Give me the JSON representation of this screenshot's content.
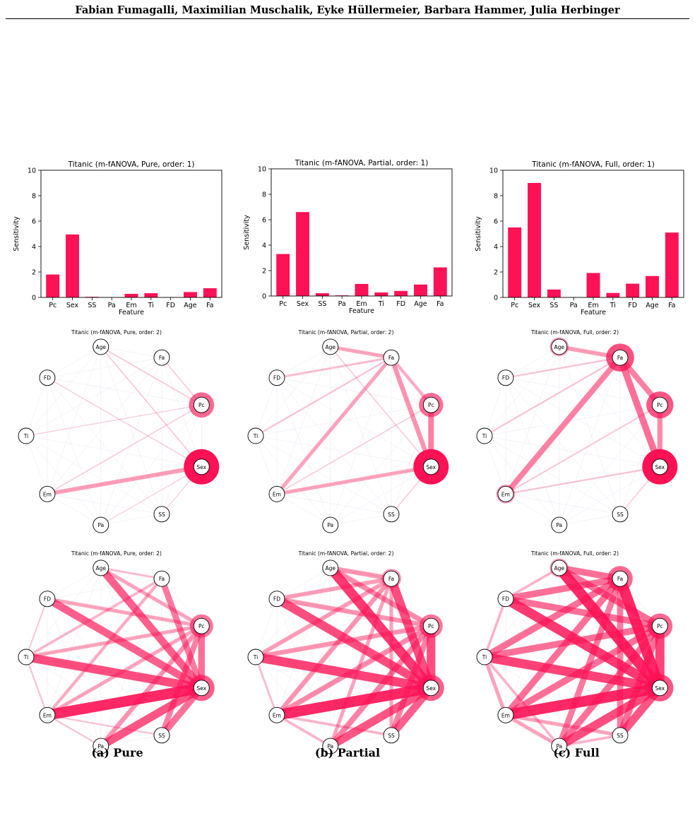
{
  "header": {
    "authors": "Fabian Fumagalli, Maximilian Muschalik, Eyke Hüllermeier, Barbara Hammer, Julia Herbinger"
  },
  "accent_color": "#ff1155",
  "features": [
    "Pc",
    "Sex",
    "SS",
    "Pa",
    "Em",
    "Ti",
    "FD",
    "Age",
    "Fa"
  ],
  "columns": [
    {
      "caption": "(a) Pure",
      "chart_data": {
        "type": "bar",
        "title": "Titanic (m-fANOVA, Pure, order: 1)",
        "xlabel": "Feature",
        "ylabel": "Sensitivity",
        "ylim": [
          0,
          10
        ],
        "yticks": [
          "0",
          "2",
          "4",
          "6",
          "8",
          "10"
        ],
        "categories": [
          "Pc",
          "Sex",
          "SS",
          "Pa",
          "Em",
          "Ti",
          "FD",
          "Age",
          "Fa"
        ],
        "values": [
          1.8,
          4.95,
          0.05,
          0.02,
          0.28,
          0.33,
          0.02,
          0.42,
          0.72
        ]
      },
      "network_mid": {
        "title": "Titanic (m-fANOVA, Pure, order: 2)",
        "node_strength": [
          0.45,
          1.0,
          0.0,
          0.0,
          0.0,
          0.0,
          0.0,
          0.0,
          0.0
        ],
        "edges": [
          [
            1,
            4,
            0.35
          ],
          [
            1,
            7,
            0.06
          ],
          [
            1,
            6,
            0.04
          ],
          [
            0,
            7,
            0.06
          ],
          [
            0,
            8,
            0.05
          ],
          [
            4,
            0,
            0.05
          ],
          [
            1,
            2,
            0.03
          ],
          [
            3,
            1,
            0.03
          ],
          [
            5,
            0,
            0.03
          ]
        ]
      },
      "network_bottom": {
        "title": "Titanic (m-fANOVA, Pure, order: 2)",
        "node_strength": [
          0.35,
          0.5,
          0.0,
          0.0,
          0.0,
          0.0,
          0.0,
          0.0,
          0.0
        ],
        "edges": [
          [
            1,
            4,
            1.0
          ],
          [
            1,
            5,
            0.8
          ],
          [
            1,
            3,
            0.75
          ],
          [
            1,
            6,
            0.7
          ],
          [
            1,
            7,
            0.7
          ],
          [
            1,
            2,
            0.6
          ],
          [
            1,
            0,
            0.6
          ],
          [
            1,
            8,
            0.55
          ],
          [
            0,
            2,
            0.5
          ],
          [
            0,
            3,
            0.4
          ],
          [
            0,
            4,
            0.3
          ],
          [
            0,
            5,
            0.3
          ],
          [
            0,
            6,
            0.3
          ],
          [
            0,
            7,
            0.3
          ],
          [
            8,
            4,
            0.25
          ],
          [
            8,
            5,
            0.2
          ],
          [
            4,
            5,
            0.1
          ],
          [
            5,
            6,
            0.08
          ],
          [
            3,
            4,
            0.1
          ],
          [
            2,
            4,
            0.1
          ],
          [
            7,
            8,
            0.15
          ]
        ]
      }
    },
    {
      "caption": "(b) Partial",
      "chart_data": {
        "type": "bar",
        "title": "Titanic (m-fANOVA, Partial, order: 1)",
        "xlabel": "Feature",
        "ylabel": "Sensitivity",
        "ylim": [
          0,
          10
        ],
        "yticks": [
          "0",
          "2",
          "4",
          "6",
          "8",
          "10"
        ],
        "categories": [
          "Pc",
          "Sex",
          "SS",
          "Pa",
          "Em",
          "Ti",
          "FD",
          "Age",
          "Fa"
        ],
        "values": [
          3.3,
          6.6,
          0.22,
          0.05,
          0.95,
          0.28,
          0.4,
          0.9,
          2.25
        ]
      },
      "network_mid": {
        "title": "Titanic (m-fANOVA, Partial, order: 2)",
        "node_strength": [
          0.4,
          1.0,
          0.0,
          0.0,
          0.0,
          0.0,
          0.0,
          0.0,
          0.0
        ],
        "edges": [
          [
            1,
            0,
            0.5
          ],
          [
            1,
            8,
            0.4
          ],
          [
            1,
            4,
            0.3
          ],
          [
            4,
            8,
            0.3
          ],
          [
            0,
            8,
            0.25
          ],
          [
            7,
            8,
            0.3
          ],
          [
            8,
            5,
            0.1
          ],
          [
            8,
            6,
            0.15
          ],
          [
            1,
            2,
            0.05
          ],
          [
            1,
            7,
            0.05
          ],
          [
            4,
            0,
            0.05
          ]
        ]
      },
      "network_bottom": {
        "title": "Titanic (m-fANOVA, Partial, order: 2)",
        "node_strength": [
          0.35,
          0.5,
          0.0,
          0.0,
          0.0,
          0.0,
          0.0,
          0.0,
          0.15
        ],
        "edges": [
          [
            1,
            4,
            1.0
          ],
          [
            1,
            5,
            0.85
          ],
          [
            1,
            7,
            0.9
          ],
          [
            1,
            6,
            0.8
          ],
          [
            1,
            3,
            0.75
          ],
          [
            1,
            2,
            0.7
          ],
          [
            1,
            8,
            0.8
          ],
          [
            1,
            0,
            0.8
          ],
          [
            0,
            2,
            0.5
          ],
          [
            0,
            3,
            0.5
          ],
          [
            0,
            4,
            0.45
          ],
          [
            0,
            5,
            0.4
          ],
          [
            0,
            6,
            0.4
          ],
          [
            0,
            7,
            0.45
          ],
          [
            8,
            4,
            0.4
          ],
          [
            8,
            5,
            0.35
          ],
          [
            8,
            6,
            0.35
          ],
          [
            8,
            3,
            0.3
          ],
          [
            8,
            2,
            0.3
          ],
          [
            7,
            8,
            0.4
          ],
          [
            4,
            5,
            0.15
          ],
          [
            2,
            4,
            0.2
          ],
          [
            3,
            4,
            0.2
          ]
        ]
      }
    },
    {
      "caption": "(c) Full",
      "chart_data": {
        "type": "bar",
        "title": "Titanic (m-fANOVA, Full, order: 1)",
        "xlabel": "Feature",
        "ylabel": "Sensitivity",
        "ylim": [
          0,
          10
        ],
        "yticks": [
          "0",
          "2",
          "4",
          "6",
          "8",
          "10"
        ],
        "categories": [
          "Pc",
          "Sex",
          "SS",
          "Pa",
          "Em",
          "Ti",
          "FD",
          "Age",
          "Fa"
        ],
        "values": [
          5.5,
          9.0,
          0.62,
          0.02,
          1.92,
          0.35,
          1.08,
          1.68,
          5.1
        ]
      },
      "network_mid": {
        "title": "Titanic (m-fANOVA, Full, order: 2)",
        "node_strength": [
          0.55,
          1.0,
          0.0,
          0.0,
          0.1,
          0.0,
          0.0,
          0.1,
          0.6
        ],
        "edges": [
          [
            1,
            8,
            0.6
          ],
          [
            1,
            0,
            0.45
          ],
          [
            0,
            8,
            0.5
          ],
          [
            4,
            8,
            0.5
          ],
          [
            7,
            8,
            0.35
          ],
          [
            1,
            4,
            0.1
          ],
          [
            8,
            6,
            0.1
          ],
          [
            8,
            5,
            0.1
          ],
          [
            4,
            0,
            0.08
          ],
          [
            1,
            2,
            0.05
          ]
        ]
      },
      "network_bottom": {
        "title": "Titanic (m-fANOVA, Full, order: 2)",
        "node_strength": [
          0.45,
          0.55,
          0.0,
          0.0,
          0.0,
          0.0,
          0.0,
          0.1,
          0.45
        ],
        "edges": [
          [
            1,
            4,
            1.0
          ],
          [
            1,
            5,
            0.85
          ],
          [
            1,
            7,
            1.0
          ],
          [
            1,
            6,
            0.9
          ],
          [
            1,
            3,
            0.8
          ],
          [
            1,
            2,
            0.75
          ],
          [
            1,
            8,
            1.0
          ],
          [
            1,
            0,
            0.85
          ],
          [
            0,
            2,
            0.6
          ],
          [
            0,
            3,
            0.6
          ],
          [
            0,
            4,
            0.6
          ],
          [
            0,
            5,
            0.6
          ],
          [
            0,
            6,
            0.6
          ],
          [
            0,
            7,
            0.6
          ],
          [
            8,
            4,
            0.6
          ],
          [
            8,
            5,
            0.6
          ],
          [
            8,
            6,
            0.6
          ],
          [
            8,
            3,
            0.55
          ],
          [
            8,
            2,
            0.55
          ],
          [
            7,
            8,
            0.6
          ],
          [
            4,
            5,
            0.3
          ],
          [
            2,
            4,
            0.3
          ],
          [
            3,
            4,
            0.3
          ],
          [
            3,
            5,
            0.2
          ],
          [
            5,
            6,
            0.2
          ],
          [
            6,
            7,
            0.2
          ],
          [
            2,
            3,
            0.2
          ]
        ]
      }
    }
  ]
}
